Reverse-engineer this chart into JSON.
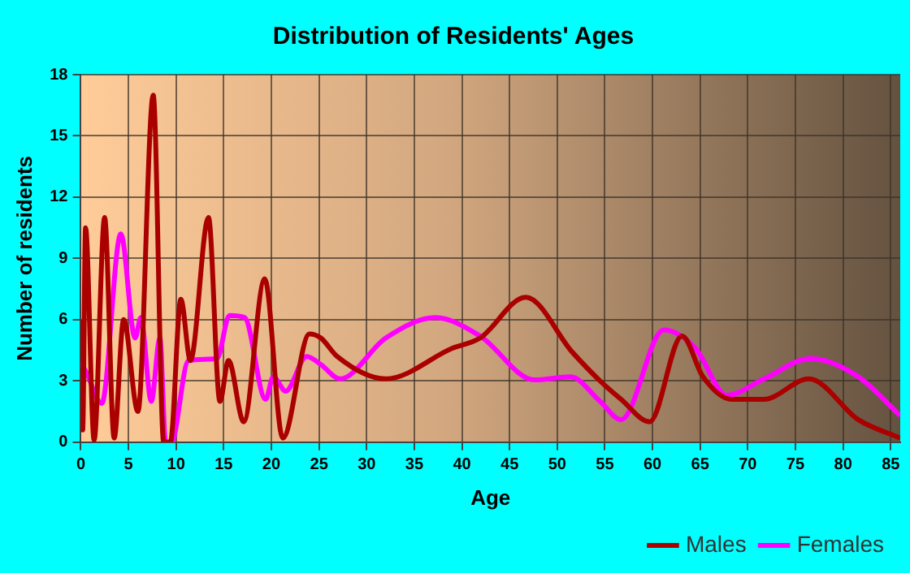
{
  "chart_data": {
    "type": "line",
    "title": "Distribution of Residents' Ages",
    "xlabel": "Age",
    "ylabel": "Number of residents",
    "xlim": [
      0,
      86
    ],
    "xticks": [
      0,
      5,
      10,
      15,
      20,
      25,
      30,
      35,
      40,
      45,
      50,
      55,
      60,
      65,
      70,
      75,
      80,
      85
    ],
    "ylim": [
      0,
      18
    ],
    "yticks": [
      0,
      3,
      6,
      9,
      12,
      15,
      18
    ],
    "grid": true,
    "legend": "bottom right",
    "marker": "none",
    "line_style": "solid",
    "series": [
      {
        "name": "Males",
        "color": "#aa0000",
        "x": [
          0,
          0.2,
          0.5,
          1.4,
          2.5,
          3.5,
          4.5,
          6,
          7.6,
          8.7,
          9.4,
          10.5,
          11.5,
          13.4,
          14.6,
          15.5,
          17.1,
          19.3,
          21.2,
          24,
          25.2,
          26.9,
          32,
          39,
          41.9,
          46.7,
          51.6,
          54.5,
          56.7,
          59.7,
          63.1,
          65.3,
          68.3,
          71.7,
          76.4,
          81.6,
          86
        ],
        "values": [
          6,
          0.6,
          10.5,
          0.1,
          11,
          0.2,
          6,
          1.5,
          17,
          0,
          0,
          7,
          4,
          11,
          2,
          4,
          1,
          8,
          0.2,
          5.3,
          5.1,
          4.2,
          3.1,
          4.6,
          5.1,
          7.1,
          4.4,
          3,
          2.1,
          1,
          5.2,
          3.2,
          2.1,
          2.1,
          3.1,
          1.1,
          0.2
        ]
      },
      {
        "name": "Females",
        "color": "#ff00ff",
        "x": [
          0,
          0.6,
          2.2,
          4.2,
          5.7,
          6.3,
          7.4,
          8.3,
          8.9,
          9.5,
          11.3,
          14.3,
          15.6,
          17.2,
          19.4,
          20.2,
          21.5,
          23.7,
          25.2,
          27.2,
          32,
          37.2,
          41.9,
          47.6,
          51.4,
          54.5,
          56.7,
          61.2,
          64.5,
          67.8,
          71.7,
          76.6,
          81.6,
          86
        ],
        "values": [
          3.9,
          3.4,
          1.9,
          10.2,
          5.1,
          6.1,
          2,
          5.1,
          0,
          0,
          4,
          4.1,
          6.2,
          6.1,
          2.1,
          3.2,
          2.5,
          4.2,
          3.8,
          3.1,
          5.1,
          6.1,
          5.2,
          3.05,
          3.2,
          2,
          1.1,
          5.5,
          4.6,
          2.3,
          3.1,
          4.1,
          3.2,
          1.3
        ]
      }
    ]
  }
}
